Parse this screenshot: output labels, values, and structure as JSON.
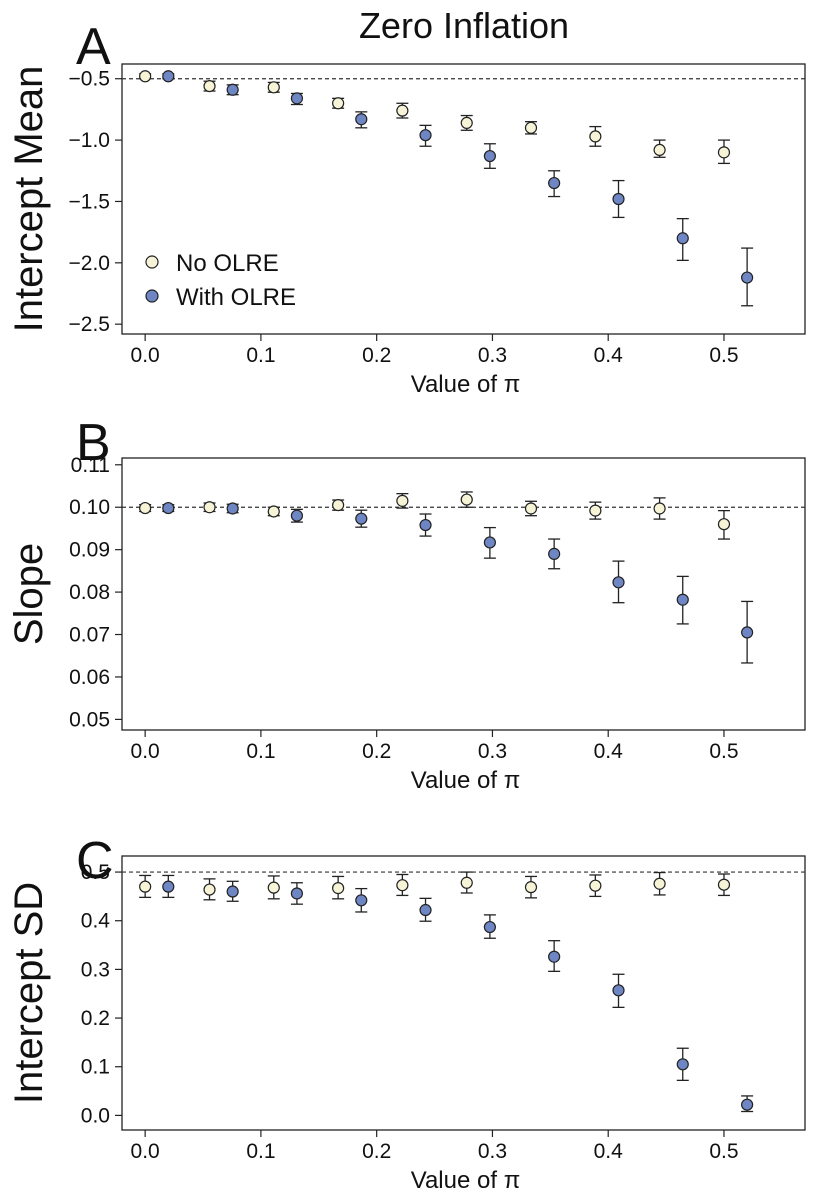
{
  "figure_title": "Zero Inflation",
  "colors": {
    "no_olre": "#f7f3d6",
    "with_olre": "#6f86c4",
    "stroke": "#222222"
  },
  "legend": {
    "no_olre": "No OLRE",
    "with_olre": "With OLRE",
    "placement": "left-center of panel A"
  },
  "chart_data": [
    {
      "panel": "A",
      "type": "scatter",
      "xlabel": "Value of π",
      "ylabel": "Intercept Mean",
      "xlim": [
        -0.02,
        0.57
      ],
      "ylim": [
        -2.58,
        -0.38
      ],
      "xticks": [
        "0.0",
        "0.1",
        "0.2",
        "0.3",
        "0.4",
        "0.5"
      ],
      "xtick_values": [
        0.0,
        0.1,
        0.2,
        0.3,
        0.4,
        0.5
      ],
      "yticks": [
        "-0.5",
        "-1.0",
        "-1.5",
        "-2.0",
        "-2.5"
      ],
      "ytick_values": [
        -0.5,
        -1.0,
        -1.5,
        -2.0,
        -2.5
      ],
      "reference_line": -0.5,
      "series": [
        {
          "name": "No OLRE",
          "x": [
            0,
            0.0556,
            0.1111,
            0.1667,
            0.2222,
            0.2778,
            0.3333,
            0.3889,
            0.4444,
            0.5
          ],
          "y": [
            -0.48,
            -0.56,
            -0.57,
            -0.7,
            -0.76,
            -0.86,
            -0.9,
            -0.97,
            -1.08,
            -1.1
          ],
          "lo": [
            -0.5,
            -0.6,
            -0.61,
            -0.74,
            -0.82,
            -0.92,
            -0.95,
            -1.05,
            -1.14,
            -1.19
          ],
          "hi": [
            -0.46,
            -0.52,
            -0.53,
            -0.66,
            -0.7,
            -0.8,
            -0.85,
            -0.89,
            -1.0,
            -1.0
          ]
        },
        {
          "name": "With OLRE",
          "x": [
            0.02,
            0.0756,
            0.1311,
            0.1867,
            0.2422,
            0.2978,
            0.3533,
            0.4089,
            0.4644,
            0.52
          ],
          "y": [
            -0.48,
            -0.59,
            -0.66,
            -0.83,
            -0.96,
            -1.13,
            -1.35,
            -1.48,
            -1.8,
            -2.12
          ],
          "lo": [
            -0.5,
            -0.63,
            -0.71,
            -0.9,
            -1.05,
            -1.23,
            -1.46,
            -1.63,
            -1.98,
            -2.35
          ],
          "hi": [
            -0.46,
            -0.55,
            -0.62,
            -0.77,
            -0.88,
            -1.03,
            -1.25,
            -1.33,
            -1.64,
            -1.88
          ]
        }
      ]
    },
    {
      "panel": "B",
      "type": "scatter",
      "xlabel": "Value of π",
      "ylabel": "Slope",
      "xlim": [
        -0.02,
        0.57
      ],
      "ylim": [
        0.0475,
        0.1116
      ],
      "xticks": [
        "0.0",
        "0.1",
        "0.2",
        "0.3",
        "0.4",
        "0.5"
      ],
      "xtick_values": [
        0.0,
        0.1,
        0.2,
        0.3,
        0.4,
        0.5
      ],
      "yticks": [
        "0.11",
        "0.10",
        "0.09",
        "0.08",
        "0.07",
        "0.06",
        "0.05"
      ],
      "ytick_values": [
        0.11,
        0.1,
        0.09,
        0.08,
        0.07,
        0.06,
        0.05
      ],
      "reference_line": 0.1,
      "series": [
        {
          "name": "No OLRE",
          "x": [
            0,
            0.0556,
            0.1111,
            0.1667,
            0.2222,
            0.2778,
            0.3333,
            0.3889,
            0.4444,
            0.5
          ],
          "y": [
            0.0998,
            0.1,
            0.099,
            0.1005,
            0.1015,
            0.1018,
            0.0997,
            0.0992,
            0.0997,
            0.096
          ],
          "lo": [
            0.099,
            0.099,
            0.098,
            0.0993,
            0.0998,
            0.1,
            0.098,
            0.0972,
            0.0972,
            0.0925
          ],
          "hi": [
            0.1006,
            0.101,
            0.1,
            0.1017,
            0.1032,
            0.1036,
            0.1014,
            0.1012,
            0.1022,
            0.0992
          ]
        },
        {
          "name": "With OLRE",
          "x": [
            0.02,
            0.0756,
            0.1311,
            0.1867,
            0.2422,
            0.2978,
            0.3533,
            0.4089,
            0.4644,
            0.52
          ],
          "y": [
            0.0998,
            0.0997,
            0.098,
            0.0973,
            0.0958,
            0.0917,
            0.089,
            0.0823,
            0.0782,
            0.0705
          ],
          "lo": [
            0.099,
            0.0987,
            0.0965,
            0.0953,
            0.0932,
            0.088,
            0.0855,
            0.0775,
            0.0725,
            0.0633
          ],
          "hi": [
            0.1006,
            0.1007,
            0.0995,
            0.0993,
            0.0984,
            0.0952,
            0.0925,
            0.0873,
            0.0837,
            0.0778
          ]
        }
      ]
    },
    {
      "panel": "C",
      "type": "scatter",
      "xlabel": "Value of π",
      "ylabel": "Intercept SD",
      "xlim": [
        -0.02,
        0.57
      ],
      "ylim": [
        -0.03,
        0.533
      ],
      "xticks": [
        "0.0",
        "0.1",
        "0.2",
        "0.3",
        "0.4",
        "0.5"
      ],
      "xtick_values": [
        0.0,
        0.1,
        0.2,
        0.3,
        0.4,
        0.5
      ],
      "yticks": [
        "0.5",
        "0.4",
        "0.3",
        "0.2",
        "0.1",
        "0.0"
      ],
      "ytick_values": [
        0.5,
        0.4,
        0.3,
        0.2,
        0.1,
        0.0
      ],
      "reference_line": 0.5,
      "series": [
        {
          "name": "No OLRE",
          "x": [
            0,
            0.0556,
            0.1111,
            0.1667,
            0.2222,
            0.2778,
            0.3333,
            0.3889,
            0.4444,
            0.5
          ],
          "y": [
            0.47,
            0.464,
            0.468,
            0.467,
            0.473,
            0.478,
            0.469,
            0.472,
            0.476,
            0.474
          ],
          "lo": [
            0.448,
            0.443,
            0.445,
            0.445,
            0.452,
            0.457,
            0.447,
            0.45,
            0.453,
            0.452
          ],
          "hi": [
            0.493,
            0.486,
            0.492,
            0.491,
            0.495,
            0.5,
            0.491,
            0.494,
            0.499,
            0.496
          ]
        },
        {
          "name": "With OLRE",
          "x": [
            0.02,
            0.0756,
            0.1311,
            0.1867,
            0.2422,
            0.2978,
            0.3533,
            0.4089,
            0.4644,
            0.52
          ],
          "y": [
            0.47,
            0.46,
            0.456,
            0.442,
            0.422,
            0.387,
            0.326,
            0.257,
            0.105,
            0.022
          ],
          "lo": [
            0.448,
            0.44,
            0.434,
            0.418,
            0.399,
            0.364,
            0.296,
            0.222,
            0.072,
            0.008
          ],
          "hi": [
            0.493,
            0.481,
            0.478,
            0.466,
            0.446,
            0.412,
            0.359,
            0.29,
            0.138,
            0.04
          ]
        }
      ]
    }
  ]
}
